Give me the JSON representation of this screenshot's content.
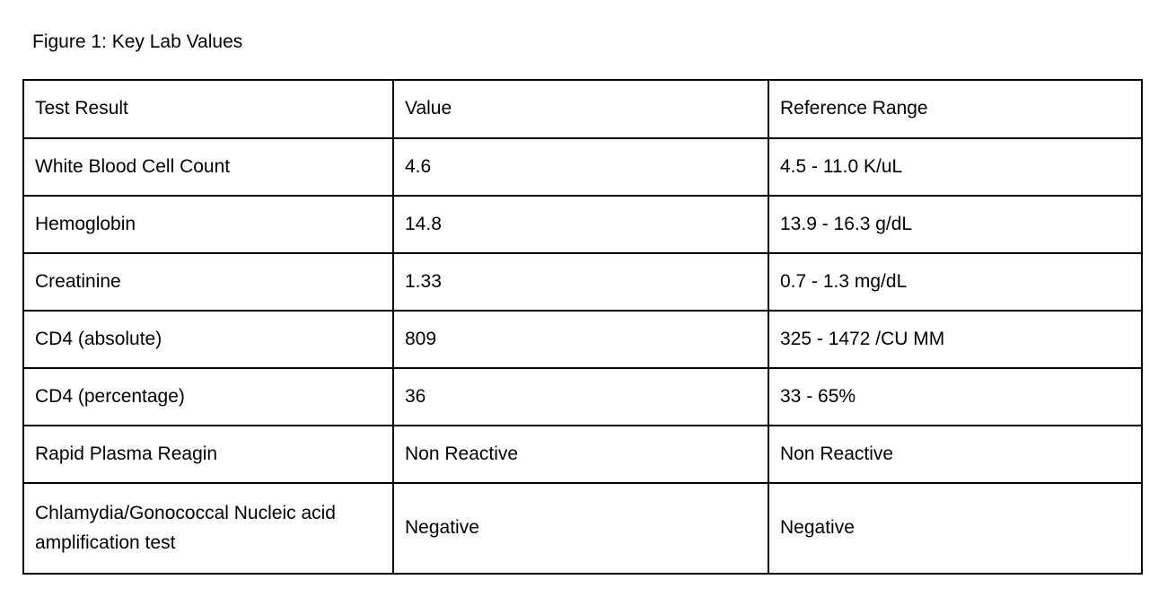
{
  "title": "Figure 1: Key Lab Values",
  "table": {
    "headers": [
      "Test Result",
      "Value",
      "Reference Range"
    ],
    "rows": [
      [
        "White Blood Cell Count",
        "4.6",
        "4.5 - 11.0 K/uL"
      ],
      [
        "Hemoglobin",
        "14.8",
        "13.9 - 16.3 g/dL"
      ],
      [
        "Creatinine",
        "1.33",
        "0.7 - 1.3 mg/dL"
      ],
      [
        "CD4 (absolute)",
        "809",
        "325 - 1472 /CU MM"
      ],
      [
        "CD4 (percentage)",
        "36",
        "33 - 65%"
      ],
      [
        "Rapid Plasma Reagin",
        "Non Reactive",
        "Non Reactive"
      ],
      [
        "Chlamydia/Gonococcal Nucleic acid amplification test",
        "Negative",
        "Negative"
      ]
    ]
  },
  "colors": {
    "text": "#000000",
    "border": "#000000",
    "background": "#ffffff"
  }
}
